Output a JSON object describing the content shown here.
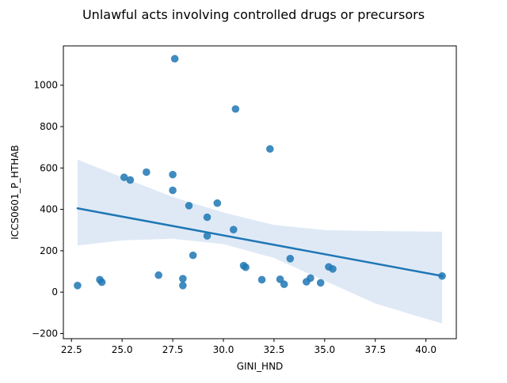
{
  "chart_data": {
    "type": "scatter",
    "title": "Unlawful acts involving controlled drugs or precursors",
    "xlabel": "GINI_HND",
    "ylabel": "ICCS0601_P_HTHAB",
    "xlim": [
      22.1,
      41.5
    ],
    "ylim": [
      -225,
      1190
    ],
    "xticks": [
      22.5,
      25.0,
      27.5,
      30.0,
      32.5,
      35.0,
      37.5,
      40.0
    ],
    "xtick_labels": [
      "22.5",
      "25.0",
      "27.5",
      "30.0",
      "32.5",
      "35.0",
      "37.5",
      "40.0"
    ],
    "yticks": [
      -200,
      0,
      200,
      400,
      600,
      800,
      1000
    ],
    "ytick_labels": [
      "−200",
      "0",
      "200",
      "400",
      "600",
      "800",
      "1000"
    ],
    "grid": false,
    "colors": {
      "points": "#1f77b4",
      "line": "#1f77b4",
      "band": "#aec7e8"
    },
    "points": {
      "x": [
        22.8,
        23.9,
        24.0,
        25.1,
        25.4,
        26.2,
        26.8,
        27.5,
        27.5,
        27.6,
        28.0,
        28.0,
        28.3,
        28.5,
        29.2,
        29.2,
        29.7,
        30.5,
        30.6,
        31.0,
        31.1,
        31.9,
        32.3,
        32.8,
        33.0,
        33.3,
        34.1,
        34.3,
        34.8,
        35.2,
        35.4,
        40.8
      ],
      "y": [
        32,
        60,
        48,
        555,
        542,
        580,
        82,
        568,
        492,
        1128,
        65,
        32,
        418,
        178,
        362,
        272,
        430,
        302,
        885,
        128,
        120,
        60,
        692,
        62,
        38,
        162,
        50,
        68,
        45,
        122,
        112,
        78
      ]
    },
    "regression": {
      "x": [
        22.8,
        40.8
      ],
      "y": [
        405,
        78
      ]
    },
    "confidence_band": {
      "x": [
        22.8,
        25.0,
        27.5,
        30.0,
        32.5,
        35.0,
        37.5,
        40.8
      ],
      "upper": [
        640,
        555,
        460,
        385,
        325,
        300,
        295,
        292
      ],
      "lower": [
        225,
        250,
        258,
        232,
        165,
        55,
        -55,
        -152
      ]
    }
  }
}
